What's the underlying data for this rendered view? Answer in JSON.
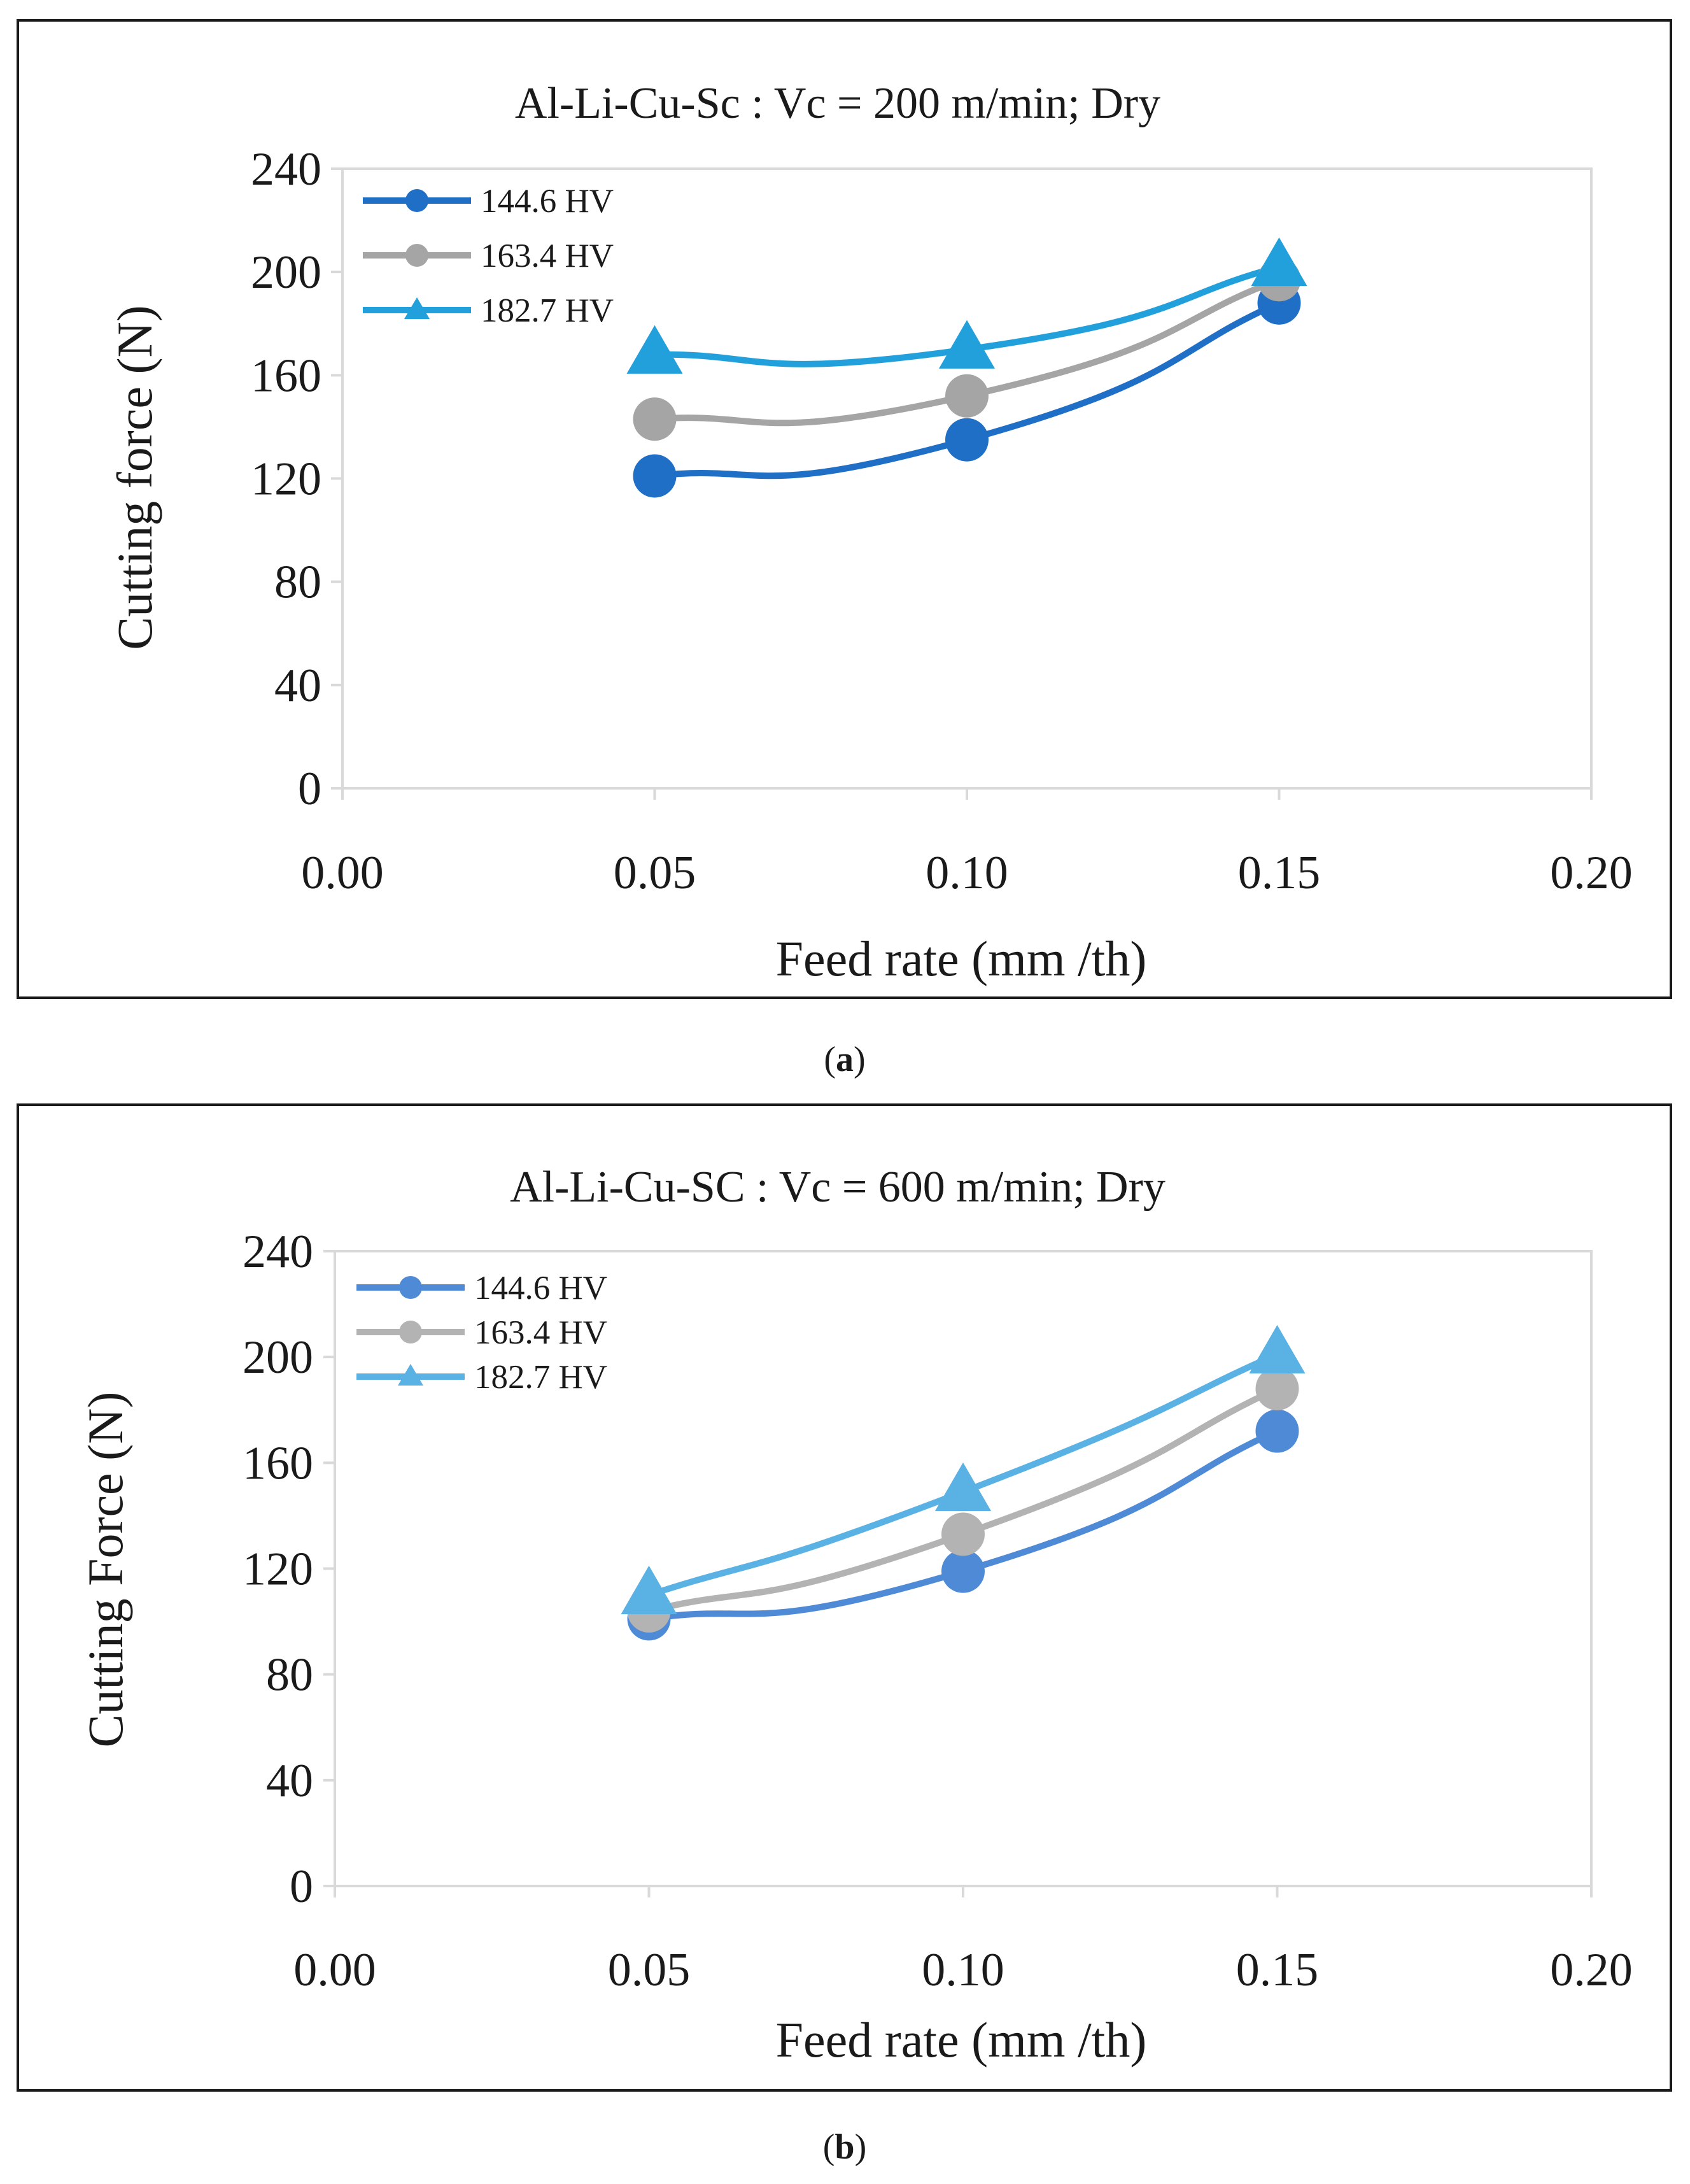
{
  "chart_data": [
    {
      "type": "line",
      "title": "Al-Li-Cu-Sc : Vc = 200 m/min; Dry",
      "xlabel": "Feed rate (mm /th)",
      "ylabel": "Cutting force (N)",
      "xlim": [
        0,
        0.2
      ],
      "ylim": [
        0,
        240
      ],
      "x_ticks": [
        "0.00",
        "0.05",
        "0.10",
        "0.15",
        "0.20"
      ],
      "y_ticks": [
        "0",
        "40",
        "80",
        "120",
        "160",
        "200",
        "240"
      ],
      "legend_position": "top-left",
      "caption_letter": "a",
      "series": [
        {
          "name": "144.6 HV",
          "marker": "circle",
          "color": "#1f6fc7",
          "x": [
            0.05,
            0.1,
            0.15
          ],
          "values": [
            121,
            135,
            188
          ]
        },
        {
          "name": "163.4 HV",
          "marker": "circle",
          "color": "#a5a5a5",
          "x": [
            0.05,
            0.1,
            0.15
          ],
          "values": [
            143,
            152,
            197
          ]
        },
        {
          "name": "182.7 HV",
          "marker": "triangle",
          "color": "#21a0dc",
          "x": [
            0.05,
            0.1,
            0.15
          ],
          "values": [
            168,
            170,
            202
          ]
        }
      ]
    },
    {
      "type": "line",
      "title": "Al-Li-Cu-SC : Vc = 600 m/min; Dry",
      "xlabel": "Feed rate (mm /th)",
      "ylabel": "Cutting Force (N)",
      "xlim": [
        0,
        0.2
      ],
      "ylim": [
        0,
        240
      ],
      "x_ticks": [
        "0.00",
        "0.05",
        "0.10",
        "0.15",
        "0.20"
      ],
      "y_ticks": [
        "0",
        "40",
        "80",
        "120",
        "160",
        "200",
        "240"
      ],
      "legend_position": "top-left",
      "caption_letter": "b",
      "series": [
        {
          "name": "144.6 HV",
          "marker": "circle",
          "color": "#4f8ad6",
          "x": [
            0.05,
            0.1,
            0.15
          ],
          "values": [
            101,
            119,
            172
          ]
        },
        {
          "name": "163.4 HV",
          "marker": "circle",
          "color": "#b3b3b3",
          "x": [
            0.05,
            0.1,
            0.15
          ],
          "values": [
            104,
            133,
            188
          ]
        },
        {
          "name": "182.7 HV",
          "marker": "triangle",
          "color": "#5ab1e3",
          "x": [
            0.05,
            0.1,
            0.15
          ],
          "values": [
            110,
            149,
            201
          ]
        }
      ]
    }
  ],
  "captions": [
    {
      "open": "(",
      "letter": "a",
      "close": ")"
    },
    {
      "open": "(",
      "letter": "b",
      "close": ")"
    }
  ]
}
